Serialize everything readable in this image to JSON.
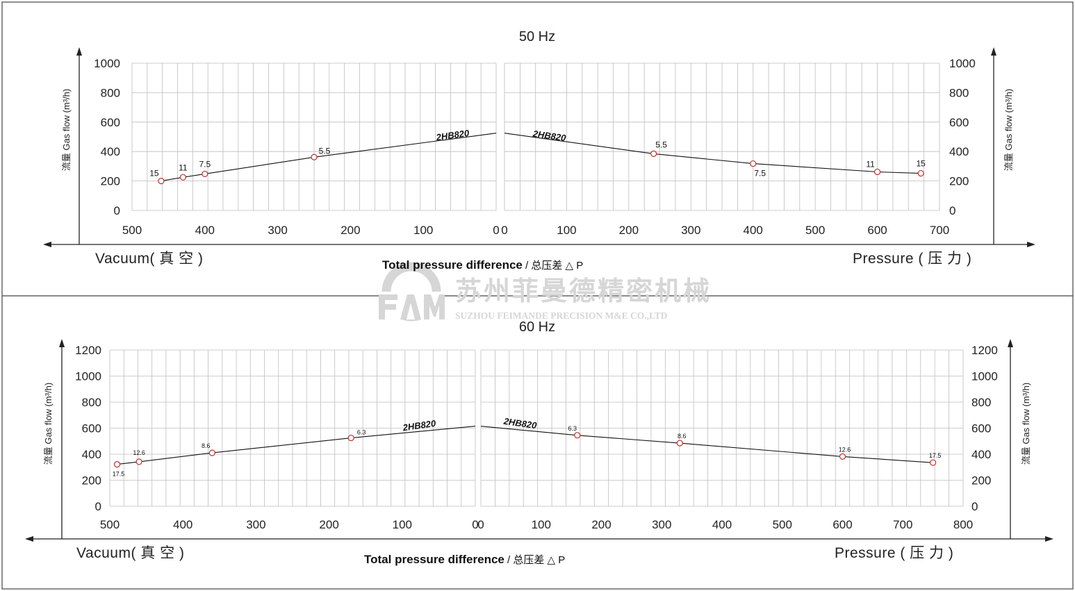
{
  "watermark": {
    "company_cn": "苏州菲曼德精密机械",
    "company_en": "SUZHOU FEIMANDE PRECISION M&E CO.,LTD",
    "color": "#d6d6d6"
  },
  "colors": {
    "marker": "#c0302a",
    "grid": "#bdbdbd",
    "line": "#111111"
  },
  "chart_data": [
    {
      "type": "line",
      "title": "50 Hz",
      "series_label": "2HB820",
      "ylabel": "流量 Gas flow (m³/h)",
      "ylabel_right": "流量 Gas flow (m³/h)",
      "xlabel": {
        "en": "Total pressure difference",
        "sep": " / ",
        "cn": "总压差 △ P"
      },
      "left_side_label": "Vacuum( 真 空 )",
      "right_side_label": "Pressure ( 压 力 )",
      "vacuum": {
        "xlim": [
          500,
          0
        ],
        "ylim": [
          0,
          1000
        ],
        "xticks": [
          "500",
          "400",
          "300",
          "200",
          "100",
          "0"
        ],
        "yticks": [
          "0",
          "200",
          "400",
          "600",
          "800",
          "1000"
        ],
        "curve": [
          [
            460,
            200
          ],
          [
            430,
            225
          ],
          [
            400,
            248
          ],
          [
            250,
            362
          ],
          [
            0,
            525
          ]
        ],
        "markers": [
          {
            "x": 460,
            "y": 200,
            "label": "15"
          },
          {
            "x": 430,
            "y": 225,
            "label": "11"
          },
          {
            "x": 400,
            "y": 248,
            "label": "7.5"
          },
          {
            "x": 250,
            "y": 362,
            "label": "5.5"
          }
        ]
      },
      "pressure": {
        "xlim": [
          0,
          700
        ],
        "ylim": [
          0,
          1000
        ],
        "xticks": [
          "0",
          "100",
          "200",
          "300",
          "400",
          "500",
          "600",
          "700"
        ],
        "yticks": [
          "0",
          "200",
          "400",
          "600",
          "800",
          "1000"
        ],
        "curve": [
          [
            0,
            525
          ],
          [
            240,
            385
          ],
          [
            400,
            318
          ],
          [
            600,
            262
          ],
          [
            670,
            252
          ]
        ],
        "markers": [
          {
            "x": 240,
            "y": 385,
            "label": "5.5"
          },
          {
            "x": 400,
            "y": 318,
            "label": "7.5"
          },
          {
            "x": 600,
            "y": 262,
            "label": "11"
          },
          {
            "x": 670,
            "y": 252,
            "label": "15"
          }
        ]
      }
    },
    {
      "type": "line",
      "title": "60 Hz",
      "series_label": "2HB820",
      "ylabel": "流量 Gas flow (m³/h)",
      "ylabel_right": "流量 Gas flow (m³/h)",
      "xlabel": {
        "en": "Total pressure difference",
        "sep": " / ",
        "cn": "总压差 △ P"
      },
      "left_side_label": "Vacuum( 真 空 )",
      "right_side_label": "Pressure ( 压 力 )",
      "vacuum": {
        "xlim": [
          500,
          0
        ],
        "ylim": [
          0,
          1200
        ],
        "xticks": [
          "500",
          "400",
          "300",
          "200",
          "100",
          "0"
        ],
        "yticks": [
          "0",
          "200",
          "400",
          "600",
          "800",
          "1000",
          "1200"
        ],
        "curve": [
          [
            490,
            322
          ],
          [
            460,
            342
          ],
          [
            360,
            410
          ],
          [
            170,
            525
          ],
          [
            0,
            615
          ]
        ],
        "markers": [
          {
            "x": 490,
            "y": 322,
            "label": "17.5"
          },
          {
            "x": 460,
            "y": 342,
            "label": "12.6"
          },
          {
            "x": 360,
            "y": 410,
            "label": "8.6"
          },
          {
            "x": 170,
            "y": 525,
            "label": "6.3"
          }
        ]
      },
      "pressure": {
        "xlim": [
          0,
          800
        ],
        "ylim": [
          0,
          1200
        ],
        "xticks": [
          "0",
          "100",
          "200",
          "300",
          "400",
          "500",
          "600",
          "700",
          "800"
        ],
        "yticks": [
          "0",
          "200",
          "400",
          "600",
          "800",
          "1000",
          "1200"
        ],
        "curve": [
          [
            0,
            615
          ],
          [
            160,
            545
          ],
          [
            330,
            485
          ],
          [
            600,
            382
          ],
          [
            750,
            335
          ]
        ],
        "markers": [
          {
            "x": 160,
            "y": 545,
            "label": "6.3"
          },
          {
            "x": 330,
            "y": 485,
            "label": "8.6"
          },
          {
            "x": 600,
            "y": 382,
            "label": "12.6"
          },
          {
            "x": 750,
            "y": 335,
            "label": "17.5"
          }
        ]
      }
    }
  ]
}
